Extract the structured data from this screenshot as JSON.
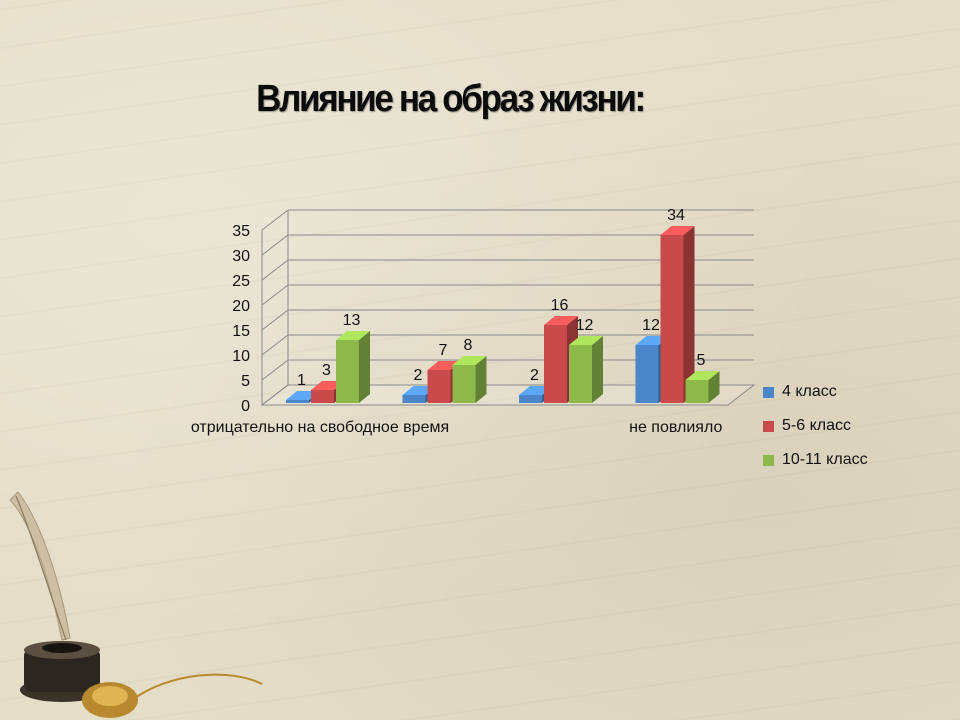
{
  "slide": {
    "title": "Влияние на образ жизни:"
  },
  "chart_data": {
    "type": "bar",
    "title": "Влияние на образ жизни:",
    "categories": [
      "отрицательно на свободное время",
      "",
      "",
      "не повлияло"
    ],
    "x_tick_labels_visible": [
      "отрицательно на свободное время",
      "не повлияло"
    ],
    "series": [
      {
        "name": "4 класс",
        "values": [
          1,
          2,
          2,
          12
        ],
        "color": "#4a86c8"
      },
      {
        "name": "5-6 класс",
        "values": [
          3,
          7,
          16,
          34
        ],
        "color": "#c84a4a"
      },
      {
        "name": "10-11 класс",
        "values": [
          13,
          8,
          12,
          5
        ],
        "color": "#8db84a"
      }
    ],
    "ylim": [
      0,
      35
    ],
    "yticks": [
      0,
      5,
      10,
      15,
      20,
      25,
      30,
      35
    ],
    "grid": true,
    "legend_position": "right",
    "style": "3d-column",
    "xlabel": "",
    "ylabel": ""
  }
}
